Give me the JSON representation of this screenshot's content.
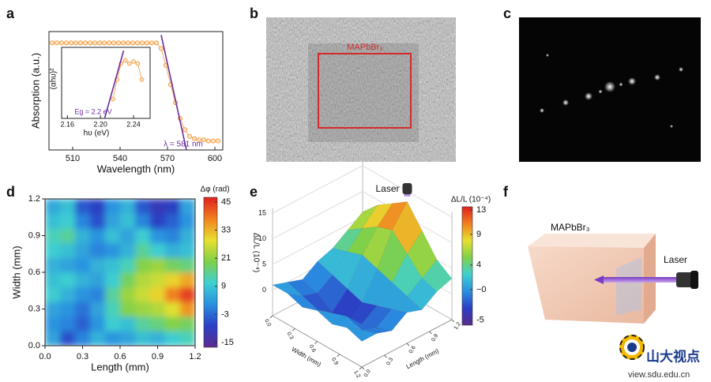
{
  "panel_labels": [
    "a",
    "b",
    "c",
    "d",
    "e",
    "f"
  ],
  "chart_data": [
    {
      "type": "line",
      "xlabel": "Wavelength (nm)",
      "ylabel": "Absorption (a.u.)",
      "xlim": [
        495,
        605
      ],
      "ylim": [
        0,
        1.05
      ],
      "xticks": [
        510,
        540,
        570,
        600
      ],
      "annotation": "λ = 581 nm",
      "series": [
        {
          "color": "#f39a3c",
          "marker": "circle",
          "x": [
            497,
            500,
            503,
            506,
            509,
            512,
            515,
            518,
            521,
            524,
            527,
            530,
            533,
            536,
            539,
            542,
            545,
            548,
            551,
            554,
            557,
            560,
            563,
            566,
            569,
            572,
            575,
            578,
            581,
            584,
            587,
            590,
            593,
            596,
            599,
            602
          ],
          "values": [
            0.95,
            0.95,
            0.95,
            0.95,
            0.95,
            0.95,
            0.95,
            0.95,
            0.95,
            0.95,
            0.95,
            0.95,
            0.95,
            0.95,
            0.95,
            0.95,
            0.95,
            0.95,
            0.95,
            0.95,
            0.95,
            0.95,
            0.95,
            0.9,
            0.75,
            0.58,
            0.42,
            0.28,
            0.18,
            0.12,
            0.1,
            0.09,
            0.09,
            0.08,
            0.08,
            0.08
          ]
        },
        {
          "color": "#6a2ca0",
          "x": [
            566,
            582
          ],
          "values": [
            1.02,
            0
          ]
        }
      ]
    },
    {
      "type": "line",
      "xlabel": "hυ (eV)",
      "ylabel": "(αhυ)²",
      "xlim": [
        2.153,
        2.26
      ],
      "ylim": [
        0,
        1.1
      ],
      "xticks": [
        2.16,
        {
          "value": 2.2,
          "label": "2.20"
        },
        2.24
      ],
      "annotation": "Eg = 2.2 eV",
      "series": [
        {
          "color": "#f39a3c",
          "marker": "circle",
          "x": [
            2.215,
            2.22,
            2.225,
            2.23,
            2.235,
            2.24,
            2.245,
            2.25
          ],
          "values": [
            0.3,
            0.6,
            0.85,
            0.9,
            0.85,
            0.88,
            0.85,
            0.6
          ]
        },
        {
          "color": "#6a2ca0",
          "x": [
            2.205,
            2.228
          ],
          "values": [
            0,
            1.05
          ]
        }
      ]
    },
    {
      "type": "heatmap",
      "xlabel": "Length (mm)",
      "ylabel": "Width (mm)",
      "colorbar_label": "Δφ (rad)",
      "xlim": [
        0,
        1.2
      ],
      "ylim": [
        0,
        1.2
      ],
      "xticks": [
        {
          "value": 0,
          "label": "0.0"
        },
        0.3,
        0.6,
        0.9,
        1.2
      ],
      "yticks": [
        {
          "value": 0,
          "label": "0.0"
        },
        0.3,
        0.6,
        0.9,
        1.2
      ],
      "x": [
        0.06,
        0.18,
        0.3,
        0.42,
        0.54,
        0.66,
        0.78,
        0.9,
        1.02,
        1.14
      ],
      "y": [
        0.06,
        0.18,
        0.3,
        0.42,
        0.54,
        0.66,
        0.78,
        0.9,
        1.02,
        1.14
      ],
      "z": [
        [
          4,
          -6,
          0,
          6,
          2,
          4,
          8,
          6,
          10,
          12
        ],
        [
          2,
          0,
          -4,
          2,
          10,
          8,
          14,
          16,
          20,
          18
        ],
        [
          4,
          2,
          -2,
          4,
          12,
          20,
          22,
          24,
          28,
          36
        ],
        [
          10,
          6,
          2,
          0,
          14,
          22,
          26,
          30,
          38,
          44
        ],
        [
          8,
          10,
          6,
          4,
          10,
          18,
          24,
          26,
          30,
          34
        ],
        [
          6,
          4,
          2,
          6,
          8,
          12,
          20,
          22,
          18,
          16
        ],
        [
          10,
          8,
          4,
          0,
          2,
          6,
          14,
          10,
          6,
          8
        ],
        [
          12,
          14,
          6,
          2,
          8,
          4,
          10,
          2,
          0,
          6
        ],
        [
          8,
          10,
          0,
          -6,
          4,
          8,
          0,
          -8,
          -4,
          2
        ],
        [
          5,
          8,
          -5,
          -8,
          2,
          6,
          -5,
          -10,
          -8,
          4
        ]
      ],
      "clim": [
        -17,
        47
      ],
      "cticks": [
        45,
        33,
        21,
        9,
        -3,
        -15
      ],
      "colormap": [
        "#5b2c8f",
        "#2b3fc4",
        "#2a8fe0",
        "#3fd0d0",
        "#7fd04a",
        "#e8e030",
        "#f08020",
        "#e02020"
      ]
    },
    {
      "type": "surface",
      "zlabel": "ΔL/L (10⁻⁴)",
      "colorbar_label": "ΔL/L (10⁻⁴)",
      "wlabel": "Width (mm)",
      "llabel": "Length (mm)",
      "laser": "Laser",
      "w": [
        0,
        0.2,
        0.4,
        0.6,
        0.8,
        1.0,
        1.2
      ],
      "l": [
        0,
        0.2,
        0.4,
        0.6,
        0.8,
        1.0,
        1.2
      ],
      "wticks": [
        {
          "value": 0,
          "label": "0.0"
        },
        0.3,
        0.6,
        0.9,
        1.2
      ],
      "lticks": [
        {
          "value": 0,
          "label": "0.0"
        },
        0.3,
        0.6,
        0.9,
        1.2
      ],
      "z": [
        [
          1,
          0,
          -1,
          1,
          2,
          4,
          6
        ],
        [
          1,
          -1,
          -2,
          0,
          3,
          6,
          9
        ],
        [
          0,
          -2,
          -4,
          -1,
          4,
          8,
          11
        ],
        [
          1,
          -1,
          -5,
          -2,
          3,
          9,
          13
        ],
        [
          0,
          0,
          -3,
          -1,
          2,
          6,
          9
        ],
        [
          1,
          -1,
          -2,
          0,
          1,
          3,
          5
        ],
        [
          0,
          0,
          -1,
          1,
          0,
          2,
          3
        ]
      ],
      "zlim": [
        -5,
        16
      ],
      "zticks": [
        0,
        5,
        10,
        15
      ],
      "clim": [
        -5.8,
        13.5
      ],
      "cticks": [
        13,
        9,
        4,
        {
          "value": 0,
          "label": "−0"
        },
        -5
      ],
      "colormap": [
        "#5b2c8f",
        "#2b3fc4",
        "#2a8fe0",
        "#3fd0d0",
        "#7fd04a",
        "#e8e030",
        "#f08020",
        "#e02020"
      ]
    }
  ],
  "image_b": {
    "label": "MAPbBr₃"
  },
  "diagram_f": {
    "crystal": "MAPbBr₃",
    "laser": "Laser"
  },
  "watermark": {
    "title": "山大视点",
    "url": "view.sdu.edu.cn"
  }
}
